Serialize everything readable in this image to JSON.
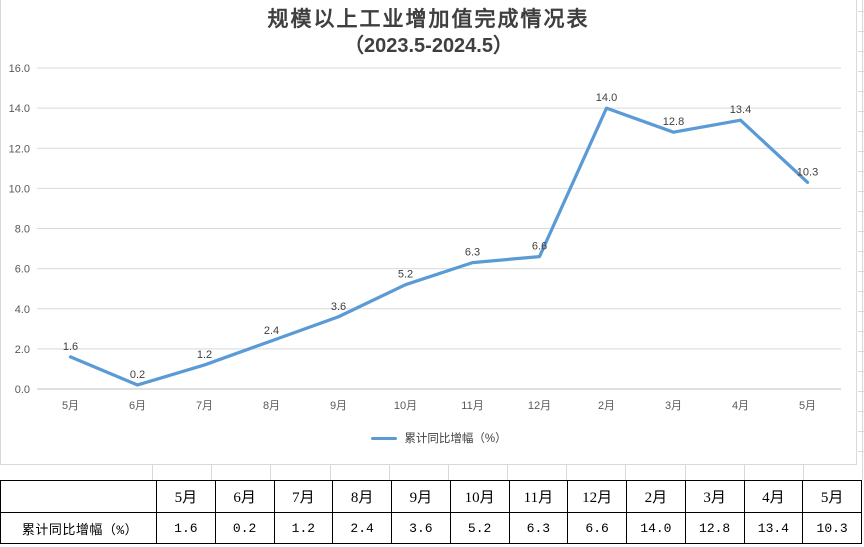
{
  "chart_data": {
    "type": "line",
    "title": "规模以上工业增加值完成情况表",
    "subtitle": "（2023.5-2024.5）",
    "categories": [
      "5月",
      "6月",
      "7月",
      "8月",
      "9月",
      "10月",
      "11月",
      "12月",
      "2月",
      "3月",
      "4月",
      "5月"
    ],
    "series": [
      {
        "name": "累计同比增幅（%）",
        "values": [
          1.6,
          0.2,
          1.2,
          2.4,
          3.6,
          5.2,
          6.3,
          6.6,
          14.0,
          12.8,
          13.4,
          10.3
        ]
      }
    ],
    "data_labels": [
      "1.6",
      "0.2",
      "1.2",
      "2.4",
      "3.6",
      "5.2",
      "6.3",
      "6.6",
      "14.0",
      "12.8",
      "13.4",
      "10.3"
    ],
    "xlabel": "",
    "ylabel": "",
    "ylim": [
      0,
      16
    ],
    "ytick_labels": [
      "0.0",
      "2.0",
      "4.0",
      "6.0",
      "8.0",
      "10.0",
      "12.0",
      "14.0",
      "16.0"
    ],
    "grid": true,
    "legend_position": "bottom",
    "line_color": "#5B9BD5"
  },
  "table": {
    "row_label": "累计同比增幅（%）",
    "columns": [
      "5月",
      "6月",
      "7月",
      "8月",
      "9月",
      "10月",
      "11月",
      "12月",
      "2月",
      "3月",
      "4月",
      "5月"
    ],
    "values": [
      "1.6",
      "0.2",
      "1.2",
      "2.4",
      "3.6",
      "5.2",
      "6.3",
      "6.6",
      "14.0",
      "12.8",
      "13.4",
      "10.3"
    ]
  },
  "colors": {
    "line": "#5B9BD5",
    "gridline": "#D9D9D9",
    "axis_line": "#BFBFBF",
    "tick_text": "#595959",
    "data_label_text": "#3F3F3F",
    "title_text": "#3F3F3F",
    "sheet_gridline": "#D9D9D9",
    "table_border": "#000000"
  }
}
